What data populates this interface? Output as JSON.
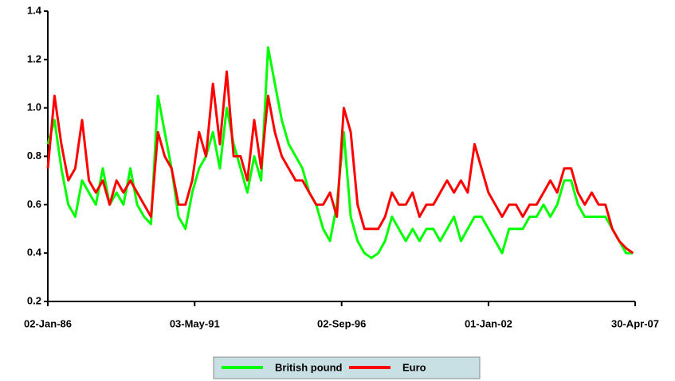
{
  "chart_data": {
    "type": "line",
    "x": [
      "02-Jan-86",
      "01-Apr-86",
      "01-Jul-86",
      "01-Oct-86",
      "01-Jan-87",
      "01-Apr-87",
      "01-Jul-87",
      "01-Oct-87",
      "01-Jan-88",
      "01-Apr-88",
      "01-Jul-88",
      "01-Oct-88",
      "01-Jan-89",
      "01-Apr-89",
      "01-Jul-89",
      "01-Oct-89",
      "01-Jan-90",
      "01-Apr-90",
      "01-Jul-90",
      "01-Oct-90",
      "01-Jan-91",
      "01-Apr-91",
      "01-Jul-91",
      "01-Oct-91",
      "01-Jan-92",
      "01-Apr-92",
      "01-Jul-92",
      "01-Oct-92",
      "01-Jan-93",
      "01-Apr-93",
      "01-Jul-93",
      "01-Oct-93",
      "01-Jan-94",
      "01-Apr-94",
      "01-Jul-94",
      "01-Oct-94",
      "01-Jan-95",
      "01-Apr-95",
      "01-Jul-95",
      "01-Oct-95",
      "01-Jan-96",
      "01-Apr-96",
      "01-Jul-96",
      "01-Oct-96",
      "01-Jan-97",
      "01-Apr-97",
      "01-Jul-97",
      "01-Oct-97",
      "01-Jan-98",
      "01-Apr-98",
      "01-Jul-98",
      "01-Oct-98",
      "01-Jan-99",
      "01-Apr-99",
      "01-Jul-99",
      "01-Oct-99",
      "01-Jan-00",
      "01-Apr-00",
      "01-Jul-00",
      "01-Oct-00",
      "01-Jan-01",
      "01-Apr-01",
      "01-Jul-01",
      "01-Oct-01",
      "01-Jan-02",
      "01-Apr-02",
      "01-Jul-02",
      "01-Oct-02",
      "01-Jan-03",
      "01-Apr-03",
      "01-Jul-03",
      "01-Oct-03",
      "01-Jan-04",
      "01-Apr-04",
      "01-Jul-04",
      "01-Oct-04",
      "01-Jan-05",
      "01-Apr-05",
      "01-Jul-05",
      "01-Oct-05",
      "01-Jan-06",
      "01-Apr-06",
      "01-Jul-06",
      "01-Oct-06",
      "01-Jan-07",
      "01-Apr-07"
    ],
    "series": [
      {
        "name": "British pound",
        "color": "#00ff00",
        "values": [
          0.85,
          0.95,
          0.75,
          0.6,
          0.55,
          0.7,
          0.65,
          0.6,
          0.75,
          0.6,
          0.65,
          0.6,
          0.75,
          0.6,
          0.55,
          0.52,
          1.05,
          0.9,
          0.75,
          0.55,
          0.5,
          0.65,
          0.75,
          0.8,
          0.9,
          0.75,
          1.0,
          0.85,
          0.75,
          0.65,
          0.8,
          0.7,
          1.25,
          1.1,
          0.95,
          0.85,
          0.8,
          0.75,
          0.65,
          0.6,
          0.5,
          0.45,
          0.6,
          0.9,
          0.55,
          0.45,
          0.4,
          0.38,
          0.4,
          0.45,
          0.55,
          0.5,
          0.45,
          0.5,
          0.45,
          0.5,
          0.5,
          0.45,
          0.5,
          0.55,
          0.45,
          0.5,
          0.55,
          0.55,
          0.5,
          0.45,
          0.4,
          0.5,
          0.5,
          0.5,
          0.55,
          0.55,
          0.6,
          0.55,
          0.6,
          0.7,
          0.7,
          0.6,
          0.55,
          0.55,
          0.55,
          0.55,
          0.5,
          0.45,
          0.4,
          0.4
        ]
      },
      {
        "name": "Euro",
        "color": "#ff0000",
        "values": [
          0.75,
          1.05,
          0.85,
          0.7,
          0.75,
          0.95,
          0.7,
          0.65,
          0.7,
          0.6,
          0.7,
          0.65,
          0.7,
          0.65,
          0.6,
          0.55,
          0.9,
          0.8,
          0.75,
          0.6,
          0.6,
          0.7,
          0.9,
          0.8,
          1.1,
          0.85,
          1.15,
          0.8,
          0.8,
          0.7,
          0.95,
          0.75,
          1.05,
          0.9,
          0.8,
          0.75,
          0.7,
          0.7,
          0.65,
          0.6,
          0.6,
          0.65,
          0.55,
          1.0,
          0.9,
          0.6,
          0.5,
          0.5,
          0.5,
          0.55,
          0.65,
          0.6,
          0.6,
          0.65,
          0.55,
          0.6,
          0.6,
          0.65,
          0.7,
          0.65,
          0.7,
          0.65,
          0.85,
          0.75,
          0.65,
          0.6,
          0.55,
          0.6,
          0.6,
          0.55,
          0.6,
          0.6,
          0.65,
          0.7,
          0.65,
          0.75,
          0.75,
          0.65,
          0.6,
          0.65,
          0.6,
          0.6,
          0.5,
          0.45,
          0.42,
          0.4
        ]
      }
    ],
    "xlim": [
      "02-Jan-86",
      "30-Apr-07"
    ],
    "xticks": [
      "02-Jan-86",
      "03-May-91",
      "02-Sep-96",
      "01-Jan-02",
      "30-Apr-07"
    ],
    "ylim": [
      0.2,
      1.4
    ],
    "yticks": [
      0.2,
      0.4,
      0.6,
      0.8,
      {
        "value": 1,
        "label": "1.0"
      },
      1.2,
      1.4
    ],
    "legend": "bottom"
  }
}
